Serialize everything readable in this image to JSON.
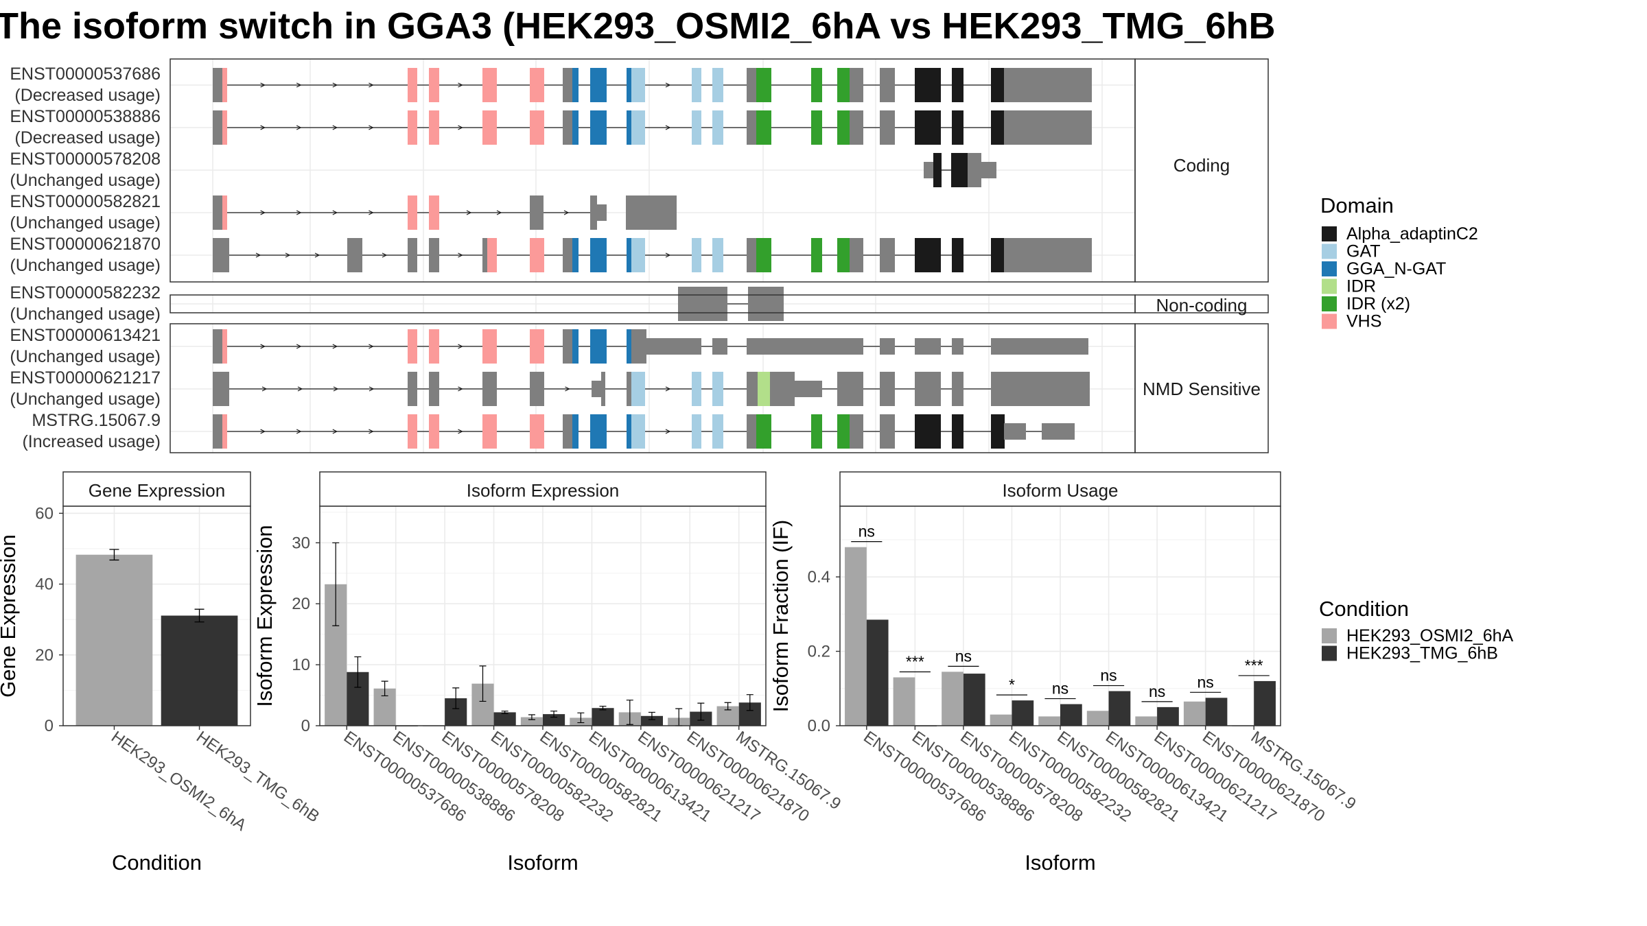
{
  "title": "The isoform switch in GGA3 (HEK293_OSMI2_6hA vs HEK293_TMG_6hB",
  "structure": {
    "panels": [
      {
        "label": "Coding",
        "isoforms": [
          {
            "id": "ENST00000537686",
            "usage": "(Decreased usage)"
          },
          {
            "id": "ENST00000538886",
            "usage": "(Decreased usage)"
          },
          {
            "id": "ENST00000578208",
            "usage": "(Unchanged usage)"
          },
          {
            "id": "ENST00000582821",
            "usage": "(Unchanged usage)"
          },
          {
            "id": "ENST00000621870",
            "usage": "(Unchanged usage)"
          }
        ]
      },
      {
        "label": "Non-coding",
        "isoforms": [
          {
            "id": "ENST00000582232",
            "usage": "(Unchanged usage)"
          }
        ]
      },
      {
        "label": "NMD Sensitive",
        "isoforms": [
          {
            "id": "ENST00000613421",
            "usage": "(Unchanged usage)"
          },
          {
            "id": "ENST00000621217",
            "usage": "(Unchanged usage)"
          },
          {
            "id": "MSTRG.15067.9",
            "usage": "(Increased usage)"
          }
        ]
      }
    ]
  },
  "domain_legend": {
    "title": "Domain",
    "items": [
      {
        "name": "Alpha_adaptinC2",
        "color": "#1a1a1a"
      },
      {
        "name": "GAT",
        "color": "#a6cee3"
      },
      {
        "name": "GGA_N-GAT",
        "color": "#1f78b4"
      },
      {
        "name": "IDR",
        "color": "#b2df8a"
      },
      {
        "name": "IDR (x2)",
        "color": "#33a02c"
      },
      {
        "name": "VHS",
        "color": "#fb9a99"
      }
    ]
  },
  "condition_legend": {
    "title": "Condition",
    "items": [
      {
        "name": "HEK293_OSMI2_6hA",
        "color": "#a6a6a6"
      },
      {
        "name": "HEK293_TMG_6hB",
        "color": "#333333"
      }
    ]
  },
  "chart_data": [
    {
      "type": "bar",
      "title": "Gene Expression",
      "xlabel": "Condition",
      "ylabel": "Gene Expression",
      "categories": [
        "HEK293_OSMI2_6hA",
        "HEK293_TMG_6hB"
      ],
      "values": [
        48.3,
        31.1
      ],
      "error": [
        1.5,
        1.8
      ],
      "ylim": [
        0,
        62
      ],
      "yticks": [
        0,
        20,
        40,
        60
      ],
      "grid": true
    },
    {
      "type": "bar",
      "title": "Isoform Expression",
      "xlabel": "Isoform",
      "ylabel": "Isoform Expression",
      "categories": [
        "ENST00000537686",
        "ENST00000538886",
        "ENST00000578208",
        "ENST00000582232",
        "ENST00000582821",
        "ENST00000613421",
        "ENST00000621217",
        "ENST00000621870",
        "MSTRG.15067.9"
      ],
      "series": [
        {
          "name": "HEK293_OSMI2_6hA",
          "values": [
            23.2,
            6.1,
            0.0,
            6.9,
            1.4,
            1.3,
            2.2,
            1.3,
            3.2
          ],
          "error": [
            6.8,
            1.2,
            0.0,
            2.9,
            0.4,
            0.8,
            2.0,
            1.5,
            0.6
          ]
        },
        {
          "name": "HEK293_TMG_6hB",
          "values": [
            8.8,
            0.0,
            4.5,
            2.2,
            1.9,
            2.9,
            1.6,
            2.3,
            3.8
          ],
          "error": [
            2.5,
            0.0,
            1.7,
            0.2,
            0.5,
            0.3,
            0.6,
            1.4,
            1.3
          ]
        }
      ],
      "ylim": [
        0,
        36
      ],
      "yticks": [
        0,
        10,
        20,
        30
      ],
      "grid": true
    },
    {
      "type": "bar",
      "title": "Isoform Usage",
      "xlabel": "Isoform",
      "ylabel": "Isoform Fraction (IF)",
      "categories": [
        "ENST00000537686",
        "ENST00000538886",
        "ENST00000578208",
        "ENST00000582232",
        "ENST00000582821",
        "ENST00000613421",
        "ENST00000621217",
        "ENST00000621870",
        "MSTRG.15067.9"
      ],
      "series": [
        {
          "name": "HEK293_OSMI2_6hA",
          "values": [
            0.48,
            0.13,
            0.145,
            0.03,
            0.025,
            0.04,
            0.025,
            0.065,
            0.0
          ]
        },
        {
          "name": "HEK293_TMG_6hB",
          "values": [
            0.285,
            0.0,
            0.14,
            0.068,
            0.058,
            0.093,
            0.05,
            0.075,
            0.12
          ]
        }
      ],
      "significance": [
        "ns",
        "***",
        "ns",
        "*",
        "ns",
        "ns",
        "ns",
        "ns",
        "***"
      ],
      "ylim": [
        0,
        0.59
      ],
      "yticks": [
        0.0,
        0.2,
        0.4
      ],
      "ytick_labels": [
        "0.0",
        "0.2",
        "0.4"
      ],
      "grid": true
    }
  ]
}
